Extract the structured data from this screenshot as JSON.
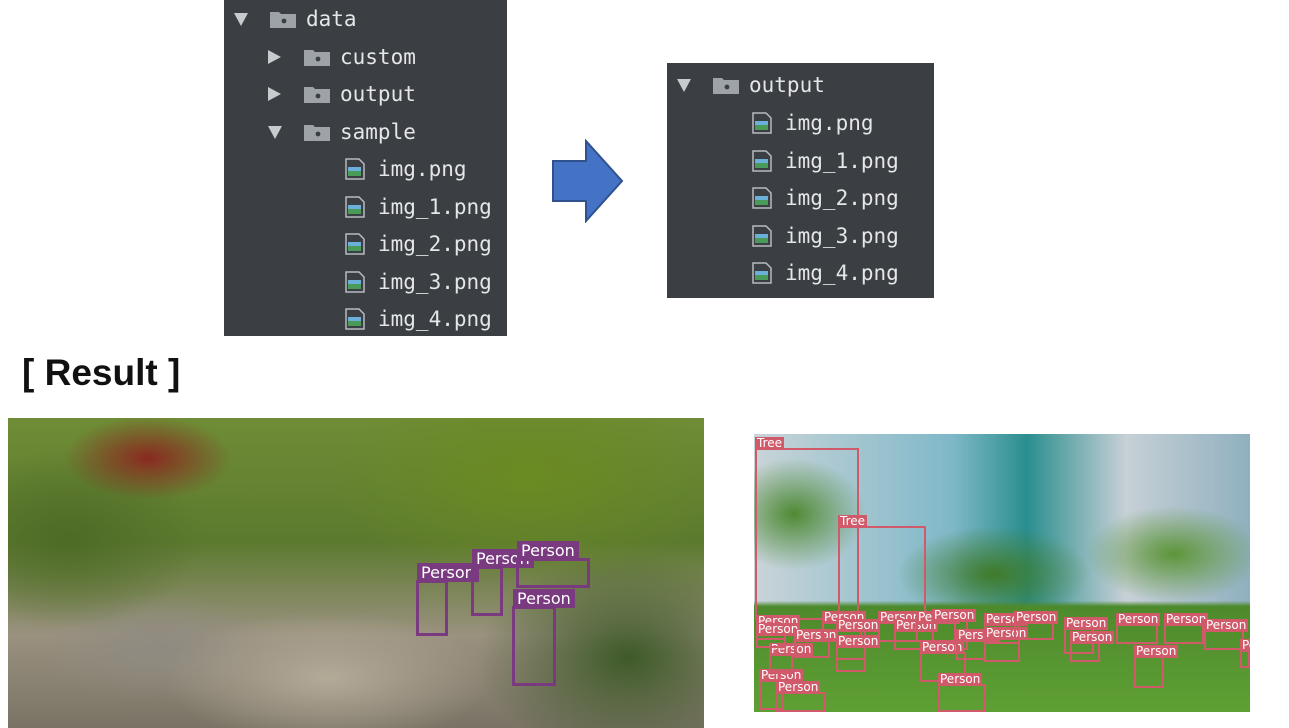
{
  "left_tree": {
    "root": "data",
    "items": [
      {
        "label": "custom",
        "type": "folder",
        "expanded": false
      },
      {
        "label": "output",
        "type": "folder",
        "expanded": false
      },
      {
        "label": "sample",
        "type": "folder",
        "expanded": true
      }
    ],
    "sample_files": [
      "img.png",
      "img_1.png",
      "img_2.png",
      "img_3.png",
      "img_4.png"
    ]
  },
  "right_tree": {
    "root": "output",
    "files": [
      "img.png",
      "img_1.png",
      "img_2.png",
      "img_3.png",
      "img_4.png"
    ]
  },
  "result_heading": "[ Result ]",
  "left_detections": {
    "color": "#7a3a80",
    "labels": [
      "Person",
      "Person",
      "Person",
      "Person"
    ]
  },
  "right_detections": {
    "color": "#d05a6a",
    "labels": [
      "Tree",
      "Tree",
      "Person",
      "Person",
      "Person",
      "Person",
      "Person",
      "Person",
      "Person",
      "Person",
      "Person",
      "Person",
      "Person",
      "Person",
      "Person",
      "Person",
      "Person",
      "Person",
      "Person",
      "Person",
      "Person",
      "Person",
      "Person",
      "Person",
      "Person",
      "Person",
      "Person",
      "Person"
    ]
  },
  "colors": {
    "tree_bg": "#3b3e42",
    "arrow_fill": "#4472c4",
    "arrow_stroke": "#2f528f"
  },
  "icons": {
    "expanded": "triangle-down-icon",
    "collapsed": "triangle-right-icon",
    "folder": "folder-icon",
    "image_file": "image-file-icon",
    "arrow": "right-arrow-icon"
  }
}
